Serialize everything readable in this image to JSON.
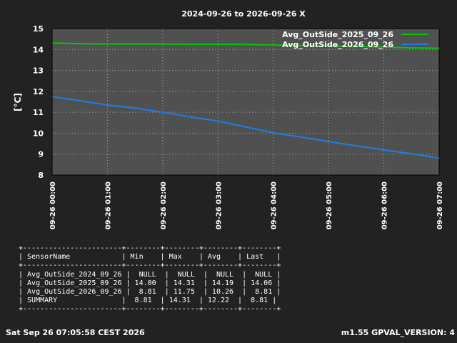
{
  "chart_data": {
    "type": "line",
    "title": "2024-09-26 to 2026-09-26 X",
    "ylabel": "[°C]",
    "xlabel": "",
    "ylim": [
      8,
      15
    ],
    "yticks": [
      "8",
      "9",
      "10",
      "11",
      "12",
      "13",
      "14",
      "15"
    ],
    "xlim": [
      "2026-09-26 00:00",
      "2026-09-26 07:00"
    ],
    "xticks": [
      "09-26 00:00",
      "09-26 01:00",
      "09-26 02:00",
      "09-26 03:00",
      "09-26 04:00",
      "09-26 05:00",
      "09-26 06:00",
      "09-26 07:00"
    ],
    "grid": true,
    "legend_position": "top-right",
    "x": [
      "00:00",
      "00:30",
      "01:00",
      "01:30",
      "02:00",
      "02:30",
      "03:00",
      "03:30",
      "04:00",
      "04:30",
      "05:00",
      "05:30",
      "06:00",
      "06:30",
      "07:00"
    ],
    "series": [
      {
        "name": "Avg_OutSide_2025_09_26",
        "color": "#00c800",
        "values": [
          14.31,
          14.28,
          14.26,
          14.26,
          14.26,
          14.25,
          14.25,
          14.24,
          14.22,
          14.19,
          14.17,
          14.15,
          14.12,
          14.08,
          14.06
        ]
      },
      {
        "name": "Avg_OutSide_2026_09_26",
        "color": "#1e7de6",
        "values": [
          11.75,
          11.55,
          11.35,
          11.2,
          11.0,
          10.78,
          10.58,
          10.3,
          10.02,
          9.82,
          9.6,
          9.4,
          9.2,
          9.02,
          8.81
        ]
      }
    ]
  },
  "stats_table": [
    "+-----------------------+--------+--------+--------+--------+",
    "| SensorName            | Min    | Max    | Avg    | Last   |",
    "+-----------------------+--------+--------+--------+--------+",
    "| Avg_OutSide_2024_09_26 |  NULL  |  NULL  |  NULL  |  NULL |",
    "| Avg_OutSide_2025_09_26 | 14.00  | 14.31  | 14.19  | 14.06 |",
    "| Avg_OutSide_2026_09_26 |  8.81  | 11.75  | 10.26  |  8.81 |",
    "| SUMMARY               |  8.81  | 14.31  | 12.22  |  8.81 |",
    "+-----------------------+--------+--------+--------+--------+"
  ],
  "footer": {
    "timestamp": "Sat Sep 26 07:05:58 CEST 2026",
    "version": "m1.55 GPVAL_VERSION: 4"
  }
}
